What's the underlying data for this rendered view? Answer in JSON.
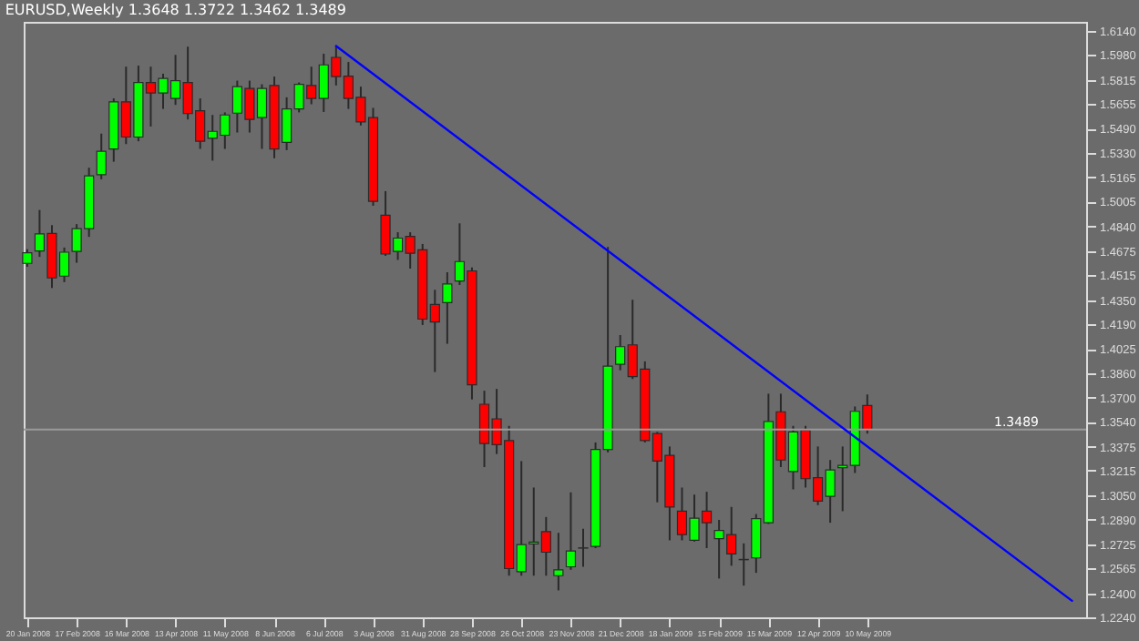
{
  "chart_data": {
    "type": "candlestick",
    "title": "EURUSD,Weekly  1.3648 1.3722 1.3462 1.3489",
    "x": [
      "2008-01-20",
      "2008-01-27",
      "2008-02-03",
      "2008-02-10",
      "2008-02-17",
      "2008-02-24",
      "2008-03-02",
      "2008-03-09",
      "2008-03-16",
      "2008-03-23",
      "2008-03-30",
      "2008-04-06",
      "2008-04-13",
      "2008-04-20",
      "2008-04-27",
      "2008-05-04",
      "2008-05-11",
      "2008-05-18",
      "2008-05-25",
      "2008-06-01",
      "2008-06-08",
      "2008-06-15",
      "2008-06-22",
      "2008-06-29",
      "2008-07-06",
      "2008-07-13",
      "2008-07-20",
      "2008-07-27",
      "2008-08-03",
      "2008-08-10",
      "2008-08-17",
      "2008-08-24",
      "2008-08-31",
      "2008-09-07",
      "2008-09-14",
      "2008-09-21",
      "2008-09-28",
      "2008-10-05",
      "2008-10-12",
      "2008-10-19",
      "2008-10-26",
      "2008-11-02",
      "2008-11-09",
      "2008-11-16",
      "2008-11-23",
      "2008-11-30",
      "2008-12-07",
      "2008-12-14",
      "2008-12-21",
      "2008-12-28",
      "2009-01-04",
      "2009-01-11",
      "2009-01-18",
      "2009-01-25",
      "2009-02-01",
      "2009-02-08",
      "2009-02-15",
      "2009-02-22",
      "2009-03-01",
      "2009-03-08",
      "2009-03-15",
      "2009-03-22",
      "2009-03-29",
      "2009-04-05",
      "2009-04-12",
      "2009-04-19",
      "2009-04-26",
      "2009-05-03",
      "2009-05-10"
    ],
    "ohlc": [
      [
        1.4594,
        1.4688,
        1.4571,
        1.4664
      ],
      [
        1.4676,
        1.4949,
        1.4637,
        1.479
      ],
      [
        1.4793,
        1.4848,
        1.443,
        1.4497
      ],
      [
        1.4509,
        1.4699,
        1.4469,
        1.4668
      ],
      [
        1.4673,
        1.4855,
        1.4598,
        1.4825
      ],
      [
        1.4825,
        1.523,
        1.477,
        1.5176
      ],
      [
        1.5183,
        1.5457,
        1.5153,
        1.534
      ],
      [
        1.5355,
        1.5691,
        1.527,
        1.5668
      ],
      [
        1.5668,
        1.5902,
        1.5387,
        1.5434
      ],
      [
        1.5434,
        1.5909,
        1.5406,
        1.5797
      ],
      [
        1.5797,
        1.5902,
        1.5504,
        1.5727
      ],
      [
        1.5727,
        1.5855,
        1.5621,
        1.5824
      ],
      [
        1.5691,
        1.598,
        1.5648,
        1.5809
      ],
      [
        1.5797,
        1.6035,
        1.5551,
        1.559
      ],
      [
        1.5609,
        1.5691,
        1.5355,
        1.5406
      ],
      [
        1.5426,
        1.5581,
        1.5277,
        1.5472
      ],
      [
        1.5446,
        1.5598,
        1.5355,
        1.5581
      ],
      [
        1.5593,
        1.5809,
        1.5464,
        1.5769
      ],
      [
        1.5757,
        1.5809,
        1.5464,
        1.5551
      ],
      [
        1.5563,
        1.5785,
        1.5355,
        1.5757
      ],
      [
        1.5777,
        1.5836,
        1.5293,
        1.5355
      ],
      [
        1.5399,
        1.5698,
        1.5347,
        1.5621
      ],
      [
        1.5621,
        1.5797,
        1.5598,
        1.5785
      ],
      [
        1.5777,
        1.5902,
        1.5652,
        1.5691
      ],
      [
        1.5691,
        1.5988,
        1.5601,
        1.5914
      ],
      [
        1.5964,
        1.6035,
        1.5777,
        1.5836
      ],
      [
        1.5839,
        1.5933,
        1.5621,
        1.5691
      ],
      [
        1.5698,
        1.5769,
        1.5511,
        1.5535
      ],
      [
        1.5563,
        1.5628,
        1.4977,
        1.5007
      ],
      [
        1.4914,
        1.5074,
        1.4644,
        1.4656
      ],
      [
        1.4673,
        1.4801,
        1.4617,
        1.4762
      ],
      [
        1.4773,
        1.4801,
        1.4559,
        1.4661
      ],
      [
        1.4684,
        1.4723,
        1.4184,
        1.4223
      ],
      [
        1.4321,
        1.4418,
        1.3871,
        1.4204
      ],
      [
        1.4333,
        1.4535,
        1.4059,
        1.4457
      ],
      [
        1.4477,
        1.486,
        1.445,
        1.4606
      ],
      [
        1.4544,
        1.4567,
        1.3689,
        1.3786
      ],
      [
        1.3657,
        1.3747,
        1.3239,
        1.3396
      ],
      [
        1.356,
        1.3759,
        1.3326,
        1.3388
      ],
      [
        1.3415,
        1.3513,
        1.2517,
        1.2564
      ],
      [
        1.2544,
        1.3279,
        1.2517,
        1.2724
      ],
      [
        1.2728,
        1.3103,
        1.2517,
        1.274
      ],
      [
        1.281,
        1.2907,
        1.2517,
        1.2673
      ],
      [
        1.2517,
        1.2802,
        1.2419,
        1.2556
      ],
      [
        1.2576,
        1.3071,
        1.2556,
        1.2681
      ],
      [
        1.27,
        1.2829,
        1.2576,
        1.2702
      ],
      [
        1.2712,
        1.3403,
        1.27,
        1.3356
      ],
      [
        1.3356,
        1.4703,
        1.3337,
        1.3911
      ],
      [
        1.3923,
        1.4117,
        1.3883,
        1.404
      ],
      [
        1.4052,
        1.4352,
        1.3825,
        1.3841
      ],
      [
        1.3891,
        1.3942,
        1.3403,
        1.3415
      ],
      [
        1.3462,
        1.3473,
        1.3005,
        1.3279
      ],
      [
        1.3317,
        1.3376,
        1.2752,
        1.2974
      ],
      [
        1.2946,
        1.3103,
        1.2752,
        1.279
      ],
      [
        1.2752,
        1.3056,
        1.2744,
        1.2899
      ],
      [
        1.2946,
        1.3075,
        1.27,
        1.2869
      ],
      [
        1.2763,
        1.2888,
        1.2498,
        1.2817
      ],
      [
        1.279,
        1.2974,
        1.2583,
        1.2661
      ],
      [
        1.2623,
        1.2732,
        1.2451,
        1.2625
      ],
      [
        1.2635,
        1.2927,
        1.2536,
        1.2896
      ],
      [
        1.2869,
        1.3727,
        1.2861,
        1.3543
      ],
      [
        1.3607,
        1.3727,
        1.3239,
        1.3286
      ],
      [
        1.3209,
        1.3513,
        1.3091,
        1.3473
      ],
      [
        1.3485,
        1.3513,
        1.3103,
        1.3162
      ],
      [
        1.3169,
        1.3376,
        1.2986,
        1.3013
      ],
      [
        1.3045,
        1.3286,
        1.2869,
        1.322
      ],
      [
        1.3235,
        1.3376,
        1.2946,
        1.3251
      ],
      [
        1.3251,
        1.3642,
        1.32,
        1.361
      ],
      [
        1.3648,
        1.3722,
        1.3462,
        1.3489
      ]
    ],
    "colors": [
      "#00ff00",
      "#00ff00",
      "#ff0000",
      "#00ff00",
      "#00ff00",
      "#00ff00",
      "#00ff00",
      "#00ff00",
      "#ff0000",
      "#00ff00",
      "#ff0000",
      "#00ff00",
      "#00ff00",
      "#ff0000",
      "#ff0000",
      "#00ff00",
      "#00ff00",
      "#00ff00",
      "#ff0000",
      "#00ff00",
      "#ff0000",
      "#00ff00",
      "#00ff00",
      "#ff0000",
      "#00ff00",
      "#ff0000",
      "#ff0000",
      "#ff0000",
      "#ff0000",
      "#ff0000",
      "#00ff00",
      "#ff0000",
      "#ff0000",
      "#ff0000",
      "#00ff00",
      "#00ff00",
      "#ff0000",
      "#ff0000",
      "#ff0000",
      "#ff0000",
      "#00ff00",
      "#00ff00",
      "#ff0000",
      "#00ff00",
      "#00ff00",
      "#00ff00",
      "#00ff00",
      "#00ff00",
      "#00ff00",
      "#ff0000",
      "#ff0000",
      "#ff0000",
      "#ff0000",
      "#ff0000",
      "#00ff00",
      "#ff0000",
      "#00ff00",
      "#ff0000",
      "#00ff00",
      "#00ff00",
      "#00ff00",
      "#ff0000",
      "#00ff00",
      "#ff0000",
      "#ff0000",
      "#00ff00",
      "#00ff00",
      "#00ff00",
      "#ff0000"
    ],
    "series": [
      {
        "type": "line",
        "x": [
          "2008-07-13",
          "2009-09-03"
        ],
        "values": [
          1.604,
          1.235
        ],
        "color": "#0000ff"
      }
    ],
    "xlim": [
      "2008-01-18",
      "2009-09-11"
    ],
    "xticks": [
      {
        "value": "2008-01-20",
        "label": "20 Jan 2008"
      },
      {
        "value": "2008-02-17",
        "label": "17 Feb 2008"
      },
      {
        "value": "2008-03-16",
        "label": "16 Mar 2008"
      },
      {
        "value": "2008-04-13",
        "label": "13 Apr 2008"
      },
      {
        "value": "2008-05-11",
        "label": "11 May 2008"
      },
      {
        "value": "2008-06-08",
        "label": "8 Jun 2008"
      },
      {
        "value": "2008-07-06",
        "label": "6 Jul 2008"
      },
      {
        "value": "2008-08-03",
        "label": "3 Aug 2008"
      },
      {
        "value": "2008-08-31",
        "label": "31 Aug 2008"
      },
      {
        "value": "2008-09-28",
        "label": "28 Sep 2008"
      },
      {
        "value": "2008-10-26",
        "label": "26 Oct 2008"
      },
      {
        "value": "2008-11-23",
        "label": "23 Nov 2008"
      },
      {
        "value": "2008-12-21",
        "label": "21 Dec 2008"
      },
      {
        "value": "2009-01-18",
        "label": "18 Jan 2009"
      },
      {
        "value": "2009-02-15",
        "label": "15 Feb 2009"
      },
      {
        "value": "2009-03-15",
        "label": "15 Mar 2009"
      },
      {
        "value": "2009-04-12",
        "label": "12 Apr 2009"
      },
      {
        "value": "2009-05-10",
        "label": "10 May 2009"
      }
    ],
    "ylim": [
      1.224,
      1.62
    ],
    "yticks": [
      {
        "value": 1.614,
        "label": "1.6140"
      },
      {
        "value": 1.598,
        "label": "1.5980"
      },
      1.5815,
      1.5655,
      {
        "value": 1.549,
        "label": "1.5490"
      },
      {
        "value": 1.533,
        "label": "1.5330"
      },
      1.5165,
      1.5005,
      {
        "value": 1.484,
        "label": "1.4840"
      },
      1.4675,
      1.4515,
      {
        "value": 1.435,
        "label": "1.4350"
      },
      {
        "value": 1.419,
        "label": "1.4190"
      },
      1.4025,
      {
        "value": 1.386,
        "label": "1.3860"
      },
      {
        "value": 1.37,
        "label": "1.3700"
      },
      {
        "value": 1.354,
        "label": "1.3540"
      },
      1.3375,
      1.3215,
      {
        "value": 1.305,
        "label": "1.3050"
      },
      {
        "value": 1.289,
        "label": "1.2890"
      },
      1.2725,
      1.2565,
      {
        "value": 1.24,
        "label": "1.2400"
      },
      {
        "value": 1.224,
        "label": "1.2240"
      }
    ],
    "ref_lines": [
      {
        "axis": "y",
        "value": 1.3489,
        "label": "1.3489",
        "color": "#9a9a9a"
      }
    ]
  }
}
